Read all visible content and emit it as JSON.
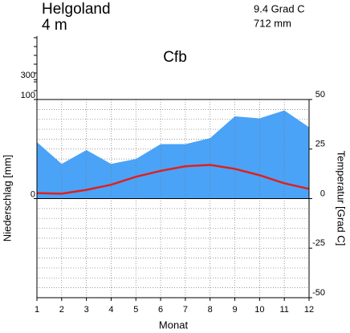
{
  "chart_data": {
    "type": "climate",
    "title": "Helgoland",
    "subtitle": "4 m",
    "annotations": [
      "9.4 Grad C",
      "712 mm",
      "Cfb"
    ],
    "x_label": "Monat",
    "y_label": "Niederschlag [mm]",
    "y2_label": "Temperatur [Grad C]",
    "x": [
      1,
      2,
      3,
      4,
      5,
      6,
      7,
      8,
      9,
      10,
      11,
      12
    ],
    "xlim": [
      1,
      12
    ],
    "xticks": [
      1,
      2,
      3,
      4,
      5,
      6,
      7,
      8,
      9,
      10,
      11,
      12
    ],
    "ylim": [
      -100,
      100
    ],
    "yticks": [
      0,
      100,
      300
    ],
    "y_compress_above": 100,
    "y_compress_factor": 0.1,
    "y2lim": [
      -50,
      50
    ],
    "y2ticks": [
      -50,
      -25,
      0,
      25,
      50
    ],
    "grid": true,
    "series": [
      {
        "name": "Niederschlag",
        "kind": "area",
        "color": "#4aa3f7",
        "values": [
          57,
          35,
          49,
          35,
          40,
          55,
          55,
          61,
          83,
          81,
          89,
          72
        ]
      },
      {
        "name": "Temperatur",
        "kind": "line",
        "axis": "y2",
        "color": "#e0201c",
        "values": [
          2.8,
          2.5,
          4.4,
          7.0,
          11.0,
          14.0,
          16.3,
          17.0,
          15.0,
          11.8,
          7.7,
          4.9
        ]
      }
    ]
  }
}
